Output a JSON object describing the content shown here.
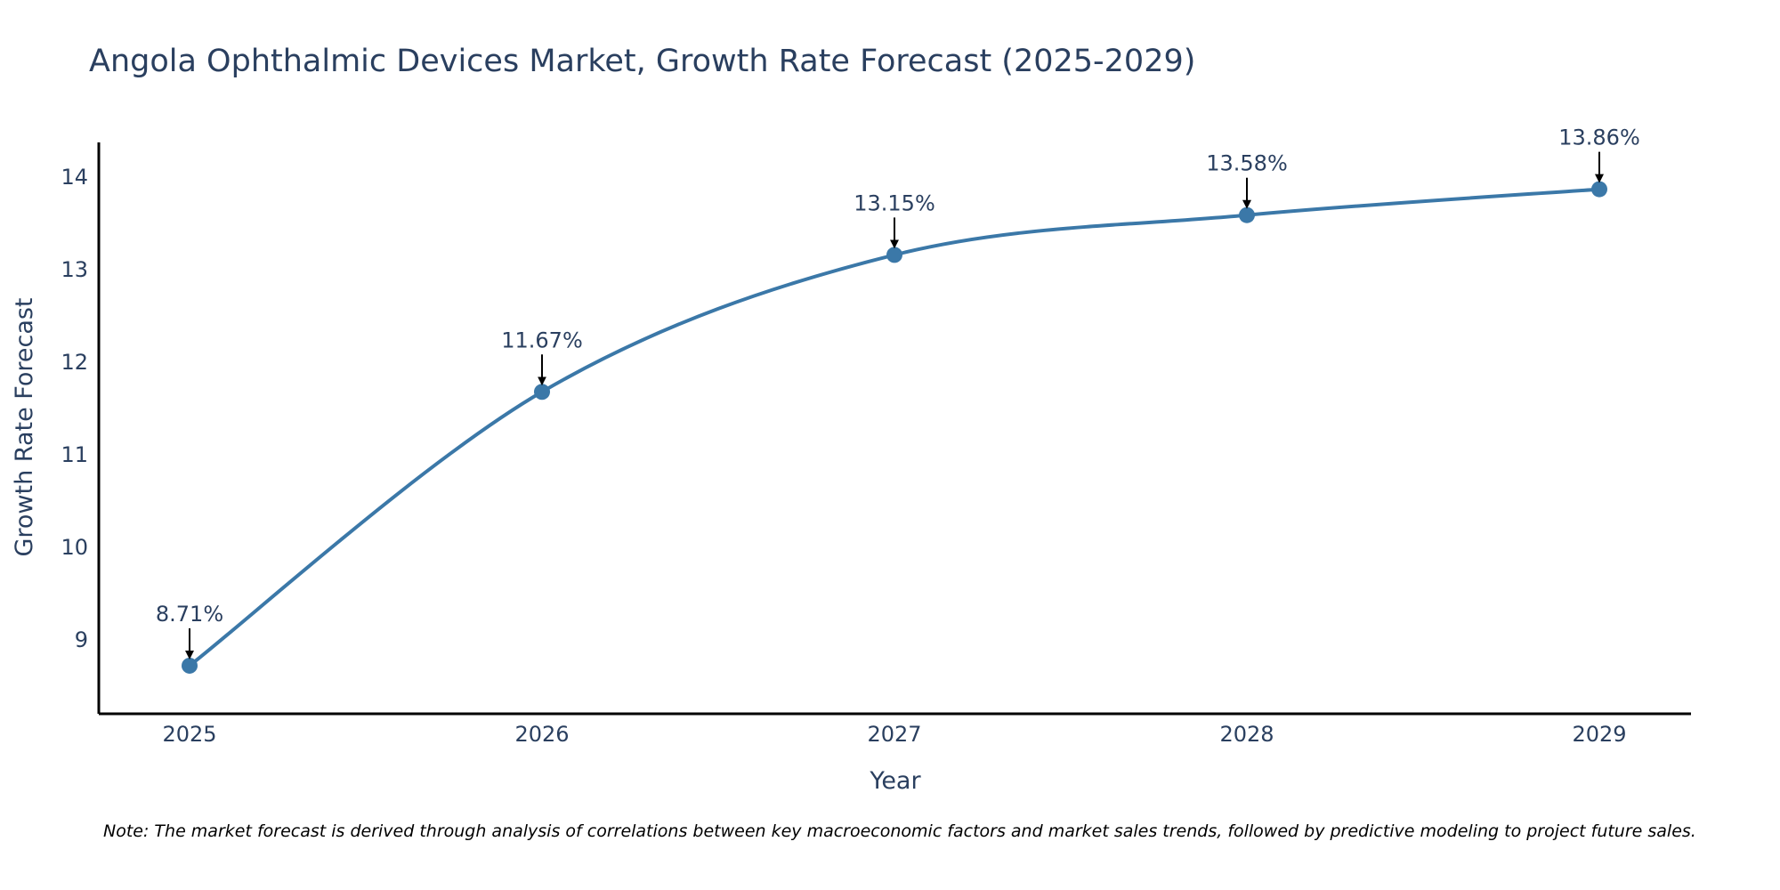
{
  "chart_data": {
    "type": "line",
    "title": "Angola Ophthalmic Devices Market, Growth Rate Forecast (2025-2029)",
    "xlabel": "Year",
    "ylabel": "Growth Rate Forecast",
    "categories": [
      "2025",
      "2026",
      "2027",
      "2028",
      "2029"
    ],
    "series": [
      {
        "name": "Growth Rate Forecast",
        "values": [
          8.71,
          11.67,
          13.15,
          13.58,
          13.86
        ],
        "labels": [
          "8.71%",
          "11.67%",
          "13.15%",
          "13.58%",
          "13.86%"
        ],
        "color": "#3b78a8"
      }
    ],
    "yticks": [
      9,
      10,
      11,
      12,
      13,
      14
    ],
    "ylim": [
      8.2,
      14.35
    ],
    "grid": false,
    "line_shape": "spline",
    "note": "Note: The market forecast is derived through analysis of correlations between key macroeconomic factors and market sales trends, followed by predictive modeling to project future sales."
  },
  "colors": {
    "line": "#3b78a8",
    "axis": "#000000",
    "text": "#2a3f5f",
    "arrow": "#000000"
  }
}
